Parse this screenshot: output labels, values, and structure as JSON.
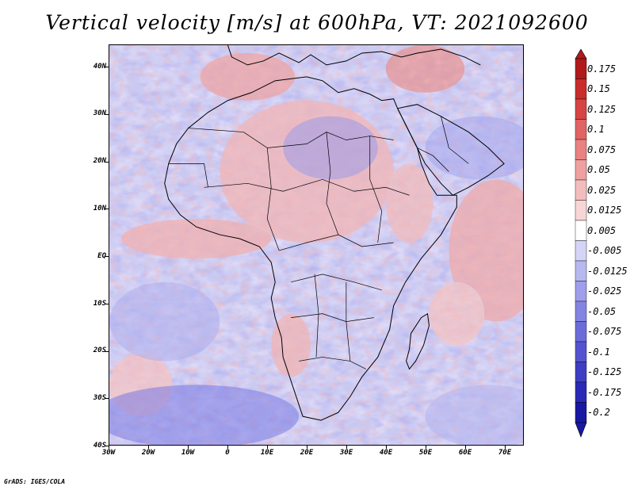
{
  "title": "Vertical velocity [m/s] at 600hPa, VT: 2021092600",
  "footer": "GrADS: IGES/COLA",
  "lat_labels": [
    "40N",
    "30N",
    "20N",
    "10N",
    "EQ",
    "10S",
    "20S",
    "30S",
    "40S"
  ],
  "lon_labels": [
    "30W",
    "20W",
    "10W",
    "0",
    "10E",
    "20E",
    "30E",
    "40E",
    "50E",
    "60E",
    "70E"
  ],
  "colorbar": {
    "colors": [
      "#b01a1a",
      "#c82c2c",
      "#d64444",
      "#e06464",
      "#e98282",
      "#efa0a0",
      "#f4bdbd",
      "#f8d6d6",
      "#ffffff",
      "#d4d4f6",
      "#b8b8f0",
      "#9e9eea",
      "#8484e2",
      "#6c6cd9",
      "#5454cf",
      "#3e3ec4",
      "#2a2ab6",
      "#1818a2"
    ],
    "levels": [
      "0.175",
      "0.15",
      "0.125",
      "0.1",
      "0.075",
      "0.05",
      "0.025",
      "0.0125",
      "0.005",
      "-0.005",
      "-0.0125",
      "-0.025",
      "-0.05",
      "-0.075",
      "-0.1",
      "-0.125",
      "-0.175",
      "-0.2"
    ]
  },
  "map_colors": {
    "background": "#c9c9f2",
    "coast": "#000000"
  }
}
